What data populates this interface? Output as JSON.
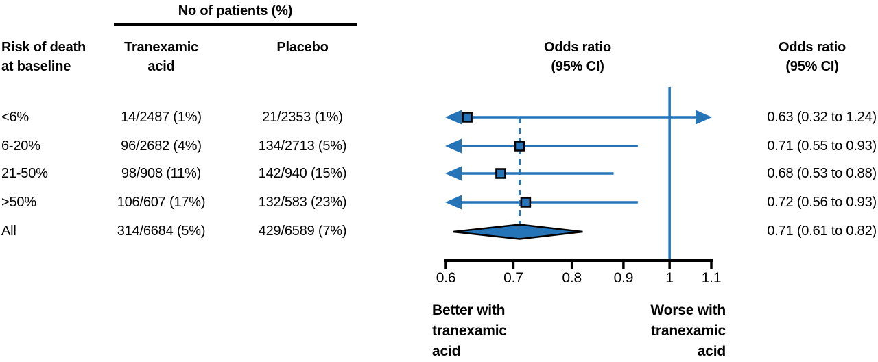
{
  "table": {
    "group_header": "No of patients (%)",
    "row_header_line1": "Risk of death",
    "row_header_line2": "at baseline",
    "col_tranexamic_line1": "Tranexamic",
    "col_tranexamic_line2": "acid",
    "col_placebo": "Placebo"
  },
  "plot_header_line1": "Odds ratio",
  "plot_header_line2": "(95% CI)",
  "right_header_line1": "Odds ratio",
  "right_header_line2": "(95% CI)",
  "footer": {
    "left_line1": "Better with",
    "left_line2": "tranexamic",
    "left_line3": "acid",
    "right_line1": "Worse with",
    "right_line2": "tranexamic",
    "right_line3": "acid"
  },
  "chart_data": {
    "type": "forest",
    "scale": "log",
    "xlim": [
      0.6,
      1.1
    ],
    "null_line": 1,
    "overall_line": 0.71,
    "legend_position": "none",
    "grid": false,
    "colors": {
      "line": "#2574b8",
      "marker_fill": "#2574b8",
      "axis": "#000000"
    },
    "x_ticks": [
      {
        "value": 0.6,
        "label": "0.6"
      },
      {
        "value": 0.7,
        "label": "0.7"
      },
      {
        "value": 0.8,
        "label": "0.8"
      },
      {
        "value": 0.9,
        "label": "0.9"
      },
      {
        "value": 1,
        "label": "1"
      },
      {
        "value": 1.1,
        "label": "1.1"
      }
    ],
    "rows": [
      {
        "risk": "<6%",
        "tranexamic": "14/2487 (1%)",
        "placebo": "21/2353 (1%)",
        "or": 0.63,
        "ci_low": 0.32,
        "ci_high": 1.24,
        "or_text": "0.63 (0.32 to 1.24)",
        "marker": "square"
      },
      {
        "risk": "6-20%",
        "tranexamic": "96/2682 (4%)",
        "placebo": "134/2713 (5%)",
        "or": 0.71,
        "ci_low": 0.55,
        "ci_high": 0.93,
        "or_text": "0.71 (0.55 to 0.93)",
        "marker": "square"
      },
      {
        "risk": "21-50%",
        "tranexamic": "98/908 (11%)",
        "placebo": "142/940 (15%)",
        "or": 0.68,
        "ci_low": 0.53,
        "ci_high": 0.88,
        "or_text": "0.68 (0.53 to 0.88)",
        "marker": "square"
      },
      {
        "risk": ">50%",
        "tranexamic": "106/607 (17%)",
        "placebo": "132/583 (23%)",
        "or": 0.72,
        "ci_low": 0.56,
        "ci_high": 0.93,
        "or_text": "0.72 (0.56 to 0.93)",
        "marker": "square"
      },
      {
        "risk": "All",
        "tranexamic": "314/6684 (5%)",
        "placebo": "429/6589 (7%)",
        "or": 0.71,
        "ci_low": 0.61,
        "ci_high": 0.82,
        "or_text": "0.71 (0.61 to 0.82)",
        "marker": "diamond"
      }
    ]
  }
}
